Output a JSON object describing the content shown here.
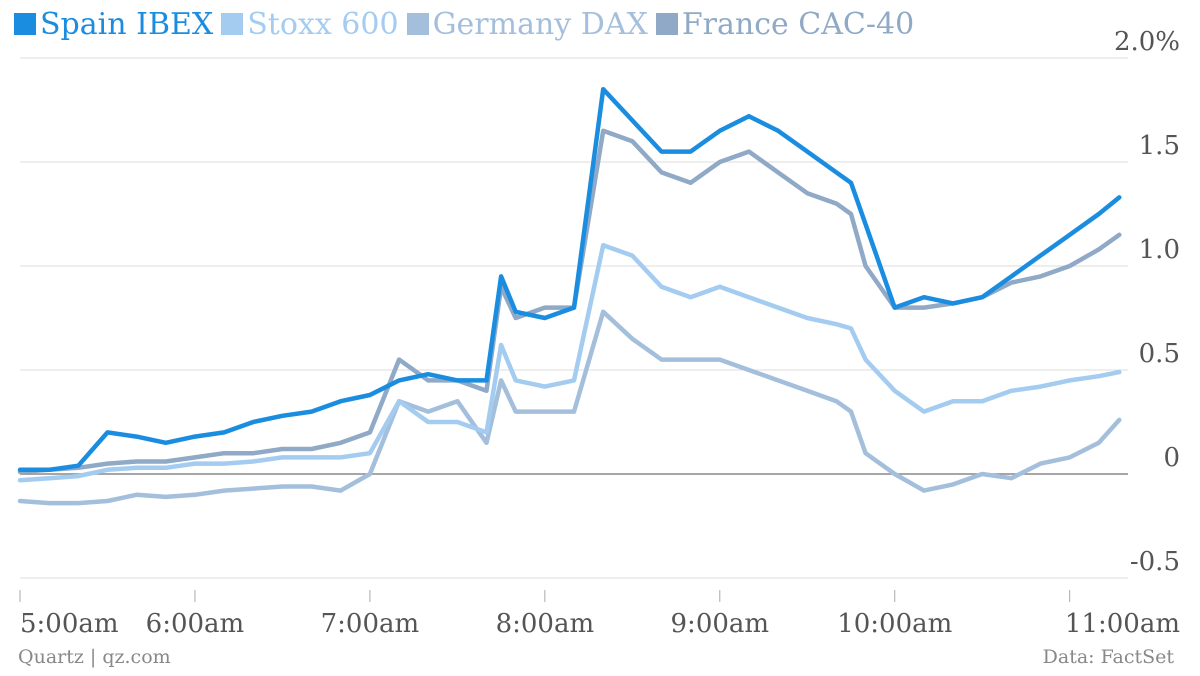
{
  "chart_data": {
    "type": "line",
    "title": "",
    "xlabel": "",
    "ylabel": "",
    "ylim": [
      -0.5,
      2.0
    ],
    "y_ticks": [
      {
        "value": 2.0,
        "label": "2.0%"
      },
      {
        "value": 1.5,
        "label": "1.5"
      },
      {
        "value": 1.0,
        "label": "1.0"
      },
      {
        "value": 0.5,
        "label": "0.5"
      },
      {
        "value": 0.0,
        "label": "0"
      },
      {
        "value": -0.5,
        "label": "-0.5"
      }
    ],
    "x_ticks": [
      {
        "value": "5:00",
        "label": "5:00am"
      },
      {
        "value": "6:00",
        "label": "6:00am"
      },
      {
        "value": "7:00",
        "label": "7:00am"
      },
      {
        "value": "8:00",
        "label": "8:00am"
      },
      {
        "value": "9:00",
        "label": "9:00am"
      },
      {
        "value": "10:00",
        "label": "10:00am"
      },
      {
        "value": "11:00",
        "label": "11:00am"
      }
    ],
    "xlim": [
      "5:00",
      "11:20"
    ],
    "grid": true,
    "legend_position": "top-left",
    "x": [
      "5:00",
      "5:10",
      "5:20",
      "5:30",
      "5:40",
      "5:50",
      "6:00",
      "6:10",
      "6:20",
      "6:30",
      "6:40",
      "6:50",
      "7:00",
      "7:10",
      "7:20",
      "7:30",
      "7:40",
      "7:45",
      "7:50",
      "8:00",
      "8:10",
      "8:20",
      "8:30",
      "8:40",
      "8:50",
      "9:00",
      "9:10",
      "9:20",
      "9:30",
      "9:40",
      "9:45",
      "9:50",
      "10:00",
      "10:10",
      "10:20",
      "10:30",
      "10:40",
      "10:50",
      "11:00",
      "11:10",
      "11:17"
    ],
    "series": [
      {
        "name": "Spain IBEX",
        "color": "#1a8de0",
        "values": [
          0.02,
          0.02,
          0.04,
          0.2,
          0.18,
          0.15,
          0.18,
          0.2,
          0.25,
          0.28,
          0.3,
          0.35,
          0.38,
          0.45,
          0.48,
          0.45,
          0.45,
          0.95,
          0.78,
          0.75,
          0.8,
          1.85,
          1.7,
          1.55,
          1.55,
          1.65,
          1.72,
          1.65,
          1.55,
          1.45,
          1.4,
          1.2,
          0.8,
          0.85,
          0.82,
          0.85,
          0.95,
          1.05,
          1.15,
          1.25,
          1.33
        ]
      },
      {
        "name": "Stoxx 600",
        "color": "#a3ccf0",
        "values": [
          -0.03,
          -0.02,
          -0.01,
          0.02,
          0.03,
          0.03,
          0.05,
          0.05,
          0.06,
          0.08,
          0.08,
          0.08,
          0.1,
          0.35,
          0.25,
          0.25,
          0.2,
          0.62,
          0.45,
          0.42,
          0.45,
          1.1,
          1.05,
          0.9,
          0.85,
          0.9,
          0.85,
          0.8,
          0.75,
          0.72,
          0.7,
          0.55,
          0.4,
          0.3,
          0.35,
          0.35,
          0.4,
          0.42,
          0.45,
          0.47,
          0.49
        ]
      },
      {
        "name": "Germany DAX",
        "color": "#a4bfdc",
        "values": [
          -0.13,
          -0.14,
          -0.14,
          -0.13,
          -0.1,
          -0.11,
          -0.1,
          -0.08,
          -0.07,
          -0.06,
          -0.06,
          -0.08,
          0.0,
          0.35,
          0.3,
          0.35,
          0.15,
          0.45,
          0.3,
          0.3,
          0.3,
          0.78,
          0.65,
          0.55,
          0.55,
          0.55,
          0.5,
          0.45,
          0.4,
          0.35,
          0.3,
          0.1,
          0.0,
          -0.08,
          -0.05,
          0.0,
          -0.02,
          0.05,
          0.08,
          0.15,
          0.26
        ]
      },
      {
        "name": "France CAC-40",
        "color": "#8fa9c6",
        "values": [
          0.01,
          0.02,
          0.03,
          0.05,
          0.06,
          0.06,
          0.08,
          0.1,
          0.1,
          0.12,
          0.12,
          0.15,
          0.2,
          0.55,
          0.45,
          0.45,
          0.4,
          0.9,
          0.75,
          0.8,
          0.8,
          1.65,
          1.6,
          1.45,
          1.4,
          1.5,
          1.55,
          1.45,
          1.35,
          1.3,
          1.25,
          1.0,
          0.8,
          0.8,
          0.82,
          0.85,
          0.92,
          0.95,
          1.0,
          1.08,
          1.15
        ]
      }
    ]
  },
  "footer": {
    "source_left": "Quartz | qz.com",
    "source_right": "Data: FactSet"
  },
  "colors": {
    "axis_text": "#555555",
    "grid": "#dddddd",
    "zero_line": "#888888",
    "footer_text": "#888888"
  }
}
